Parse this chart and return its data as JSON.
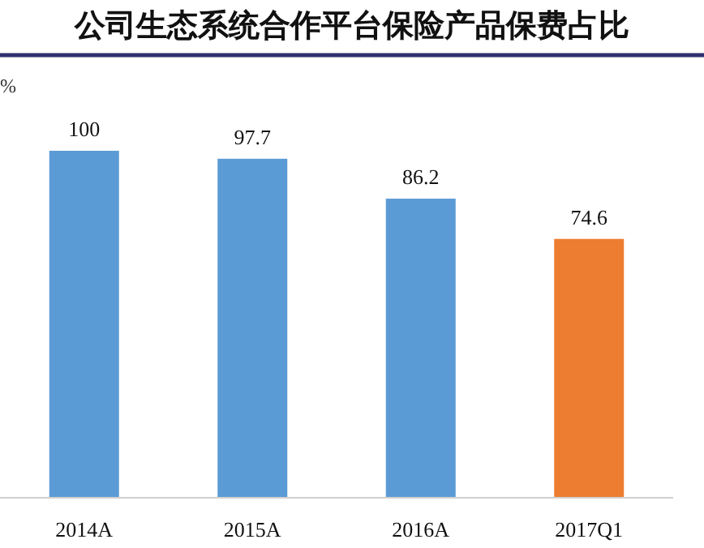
{
  "chart_data": {
    "type": "bar",
    "title": "公司生态系统合作平台保险产品保费占比",
    "ylabel": "%",
    "categories": [
      "2014A",
      "2015A",
      "2016A",
      "2017Q1"
    ],
    "values": [
      100,
      97.7,
      86.2,
      74.6
    ],
    "colors": [
      "#5b9bd5",
      "#5b9bd5",
      "#5b9bd5",
      "#ed7d31"
    ],
    "data_labels": true
  }
}
